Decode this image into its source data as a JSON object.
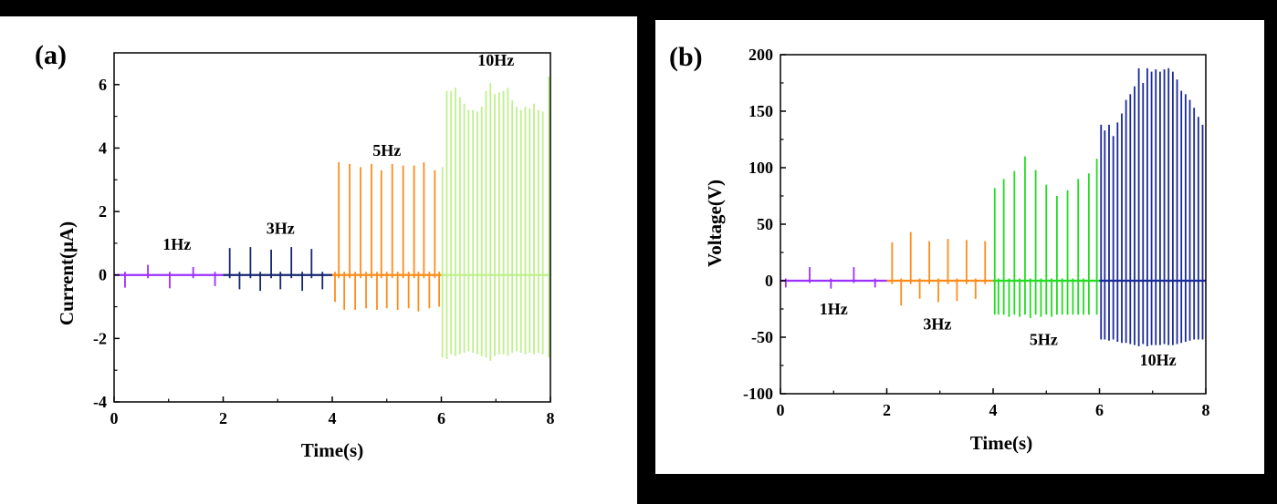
{
  "chart_data": [
    {
      "type": "line",
      "panel_label": "(a)",
      "title": "",
      "xlabel": "Time(s)",
      "ylabel": "Current(μA)",
      "xlim": [
        0,
        8
      ],
      "ylim": [
        -4,
        7
      ],
      "xticks": [
        "0",
        "2",
        "4",
        "6",
        "8"
      ],
      "yticks": [
        "-4",
        "-2",
        "0",
        "2",
        "4",
        "6"
      ],
      "grid": false,
      "series": [
        {
          "name": "1Hz",
          "color": "#9b30ff",
          "t_start": 0.0,
          "t_end": 2.0,
          "pulses": [
            {
              "t": 0.2,
              "pos": 0.1,
              "neg": -0.4
            },
            {
              "t": 0.62,
              "pos": 0.32,
              "neg": -0.1
            },
            {
              "t": 1.02,
              "pos": 0.1,
              "neg": -0.42
            },
            {
              "t": 1.45,
              "pos": 0.25,
              "neg": -0.1
            },
            {
              "t": 1.85,
              "pos": 0.1,
              "neg": -0.35
            }
          ]
        },
        {
          "name": "3Hz",
          "color": "#152670",
          "t_start": 2.0,
          "t_end": 4.0,
          "pulses": [
            {
              "t": 2.12,
              "pos": 0.85,
              "neg": -0.1
            },
            {
              "t": 2.3,
              "pos": 0.1,
              "neg": -0.45
            },
            {
              "t": 2.5,
              "pos": 0.88,
              "neg": -0.1
            },
            {
              "t": 2.68,
              "pos": 0.1,
              "neg": -0.5
            },
            {
              "t": 2.88,
              "pos": 0.8,
              "neg": -0.1
            },
            {
              "t": 3.05,
              "pos": 0.1,
              "neg": -0.45
            },
            {
              "t": 3.25,
              "pos": 0.88,
              "neg": -0.1
            },
            {
              "t": 3.45,
              "pos": 0.1,
              "neg": -0.5
            },
            {
              "t": 3.62,
              "pos": 0.82,
              "neg": -0.1
            },
            {
              "t": 3.82,
              "pos": 0.1,
              "neg": -0.45
            }
          ]
        },
        {
          "name": "5Hz",
          "color": "#ff8c1a",
          "t_start": 4.0,
          "t_end": 6.0,
          "pulses": [
            {
              "t": 4.05,
              "pos": 0.1,
              "neg": -0.85
            },
            {
              "t": 4.12,
              "pos": 3.55,
              "neg": -0.1
            },
            {
              "t": 4.22,
              "pos": 0.1,
              "neg": -1.1
            },
            {
              "t": 4.32,
              "pos": 3.5,
              "neg": -0.1
            },
            {
              "t": 4.42,
              "pos": 0.1,
              "neg": -1.1
            },
            {
              "t": 4.52,
              "pos": 3.4,
              "neg": -0.1
            },
            {
              "t": 4.62,
              "pos": 0.1,
              "neg": -1.05
            },
            {
              "t": 4.72,
              "pos": 3.5,
              "neg": -0.1
            },
            {
              "t": 4.82,
              "pos": 0.1,
              "neg": -1.1
            },
            {
              "t": 4.9,
              "pos": 3.3,
              "neg": -0.1
            },
            {
              "t": 5.0,
              "pos": 0.1,
              "neg": -1.05
            },
            {
              "t": 5.1,
              "pos": 3.5,
              "neg": -0.1
            },
            {
              "t": 5.2,
              "pos": 0.1,
              "neg": -1.1
            },
            {
              "t": 5.3,
              "pos": 3.45,
              "neg": -0.1
            },
            {
              "t": 5.4,
              "pos": 0.1,
              "neg": -1.05
            },
            {
              "t": 5.5,
              "pos": 3.45,
              "neg": -0.1
            },
            {
              "t": 5.58,
              "pos": 0.1,
              "neg": -1.15
            },
            {
              "t": 5.68,
              "pos": 3.55,
              "neg": -0.1
            },
            {
              "t": 5.78,
              "pos": 0.1,
              "neg": -1.05
            },
            {
              "t": 5.88,
              "pos": 3.3,
              "neg": -0.1
            },
            {
              "t": 5.96,
              "pos": 0.1,
              "neg": -1.0
            }
          ]
        },
        {
          "name": "10Hz",
          "color": "#bff08c",
          "t_start": 6.0,
          "t_end": 8.0,
          "pulses": [
            {
              "t": 6.02,
              "pos": 3.4,
              "neg": -2.6
            },
            {
              "t": 6.1,
              "pos": 5.8,
              "neg": -2.65
            },
            {
              "t": 6.18,
              "pos": 5.8,
              "neg": -2.5
            },
            {
              "t": 6.26,
              "pos": 5.9,
              "neg": -2.55
            },
            {
              "t": 6.34,
              "pos": 5.6,
              "neg": -2.5
            },
            {
              "t": 6.42,
              "pos": 5.4,
              "neg": -2.45
            },
            {
              "t": 6.5,
              "pos": 5.2,
              "neg": -2.4
            },
            {
              "t": 6.58,
              "pos": 5.2,
              "neg": -2.45
            },
            {
              "t": 6.66,
              "pos": 5.15,
              "neg": -2.5
            },
            {
              "t": 6.74,
              "pos": 5.3,
              "neg": -2.55
            },
            {
              "t": 6.82,
              "pos": 5.8,
              "neg": -2.6
            },
            {
              "t": 6.9,
              "pos": 6.05,
              "neg": -2.7
            },
            {
              "t": 6.98,
              "pos": 5.7,
              "neg": -2.55
            },
            {
              "t": 7.06,
              "pos": 5.75,
              "neg": -2.5
            },
            {
              "t": 7.14,
              "pos": 5.8,
              "neg": -2.5
            },
            {
              "t": 7.22,
              "pos": 5.9,
              "neg": -2.55
            },
            {
              "t": 7.3,
              "pos": 5.5,
              "neg": -2.45
            },
            {
              "t": 7.38,
              "pos": 5.3,
              "neg": -2.4
            },
            {
              "t": 7.46,
              "pos": 5.2,
              "neg": -2.45
            },
            {
              "t": 7.54,
              "pos": 5.3,
              "neg": -2.5
            },
            {
              "t": 7.62,
              "pos": 5.25,
              "neg": -2.45
            },
            {
              "t": 7.7,
              "pos": 5.4,
              "neg": -2.5
            },
            {
              "t": 7.78,
              "pos": 5.2,
              "neg": -2.45
            },
            {
              "t": 7.86,
              "pos": 5.15,
              "neg": -2.5
            },
            {
              "t": 7.97,
              "pos": 6.25,
              "neg": -2.6
            }
          ]
        }
      ],
      "annotations": [
        {
          "text": "1Hz",
          "t": 1.15,
          "v": 0.8
        },
        {
          "text": "3Hz",
          "t": 3.05,
          "v": 1.3
        },
        {
          "text": "5Hz",
          "t": 5.0,
          "v": 3.75
        },
        {
          "text": "10Hz",
          "t": 7.0,
          "v": 6.6
        }
      ]
    },
    {
      "type": "line",
      "panel_label": "(b)",
      "title": "",
      "xlabel": "Time(s)",
      "ylabel": "Voltage(V)",
      "xlim": [
        0,
        8
      ],
      "ylim": [
        -100,
        200
      ],
      "xticks": [
        "0",
        "2",
        "4",
        "6",
        "8"
      ],
      "yticks": [
        "-100",
        "-50",
        "0",
        "50",
        "100",
        "150",
        "200"
      ],
      "grid": false,
      "series": [
        {
          "name": "1Hz",
          "color": "#9b30ff",
          "t_start": 0.0,
          "t_end": 2.0,
          "pulses": [
            {
              "t": 0.1,
              "pos": 2,
              "neg": -6
            },
            {
              "t": 0.55,
              "pos": 12,
              "neg": -2
            },
            {
              "t": 0.95,
              "pos": 2,
              "neg": -7
            },
            {
              "t": 1.38,
              "pos": 12,
              "neg": -2
            },
            {
              "t": 1.78,
              "pos": 2,
              "neg": -6
            }
          ]
        },
        {
          "name": "3Hz",
          "color": "#ff8c1a",
          "t_start": 2.0,
          "t_end": 4.0,
          "pulses": [
            {
              "t": 2.1,
              "pos": 34,
              "neg": -3
            },
            {
              "t": 2.27,
              "pos": 2,
              "neg": -22
            },
            {
              "t": 2.45,
              "pos": 43,
              "neg": -3
            },
            {
              "t": 2.62,
              "pos": 2,
              "neg": -16
            },
            {
              "t": 2.8,
              "pos": 35,
              "neg": -3
            },
            {
              "t": 2.97,
              "pos": 2,
              "neg": -19
            },
            {
              "t": 3.15,
              "pos": 37,
              "neg": -3
            },
            {
              "t": 3.32,
              "pos": 2,
              "neg": -18
            },
            {
              "t": 3.5,
              "pos": 36,
              "neg": -3
            },
            {
              "t": 3.67,
              "pos": 2,
              "neg": -16
            },
            {
              "t": 3.85,
              "pos": 35,
              "neg": -3
            }
          ]
        },
        {
          "name": "5Hz",
          "color": "#22dd22",
          "t_start": 4.0,
          "t_end": 6.0,
          "pulses": [
            {
              "t": 4.03,
              "pos": 82,
              "neg": -30
            },
            {
              "t": 4.1,
              "pos": 2,
              "neg": -30
            },
            {
              "t": 4.2,
              "pos": 90,
              "neg": -30
            },
            {
              "t": 4.3,
              "pos": 2,
              "neg": -32
            },
            {
              "t": 4.4,
              "pos": 97,
              "neg": -30
            },
            {
              "t": 4.5,
              "pos": 2,
              "neg": -32
            },
            {
              "t": 4.6,
              "pos": 110,
              "neg": -30
            },
            {
              "t": 4.7,
              "pos": 2,
              "neg": -33
            },
            {
              "t": 4.8,
              "pos": 98,
              "neg": -30
            },
            {
              "t": 4.9,
              "pos": 2,
              "neg": -32
            },
            {
              "t": 5.0,
              "pos": 85,
              "neg": -30
            },
            {
              "t": 5.1,
              "pos": 2,
              "neg": -32
            },
            {
              "t": 5.2,
              "pos": 75,
              "neg": -30
            },
            {
              "t": 5.3,
              "pos": 2,
              "neg": -30
            },
            {
              "t": 5.4,
              "pos": 80,
              "neg": -30
            },
            {
              "t": 5.5,
              "pos": 2,
              "neg": -30
            },
            {
              "t": 5.6,
              "pos": 90,
              "neg": -30
            },
            {
              "t": 5.7,
              "pos": 2,
              "neg": -30
            },
            {
              "t": 5.8,
              "pos": 95,
              "neg": -30
            },
            {
              "t": 5.95,
              "pos": 108,
              "neg": -30
            }
          ]
        },
        {
          "name": "10Hz",
          "color": "#1a2a99",
          "t_start": 6.0,
          "t_end": 8.0,
          "pulses": [
            {
              "t": 6.03,
              "pos": 138,
              "neg": -52
            },
            {
              "t": 6.1,
              "pos": 133,
              "neg": -52
            },
            {
              "t": 6.18,
              "pos": 138,
              "neg": -53
            },
            {
              "t": 6.26,
              "pos": 128,
              "neg": -52
            },
            {
              "t": 6.34,
              "pos": 140,
              "neg": -54
            },
            {
              "t": 6.42,
              "pos": 148,
              "neg": -55
            },
            {
              "t": 6.5,
              "pos": 160,
              "neg": -55
            },
            {
              "t": 6.58,
              "pos": 165,
              "neg": -56
            },
            {
              "t": 6.66,
              "pos": 172,
              "neg": -57
            },
            {
              "t": 6.74,
              "pos": 188,
              "neg": -58
            },
            {
              "t": 6.82,
              "pos": 175,
              "neg": -56
            },
            {
              "t": 6.9,
              "pos": 188,
              "neg": -58
            },
            {
              "t": 6.98,
              "pos": 185,
              "neg": -57
            },
            {
              "t": 7.06,
              "pos": 187,
              "neg": -57
            },
            {
              "t": 7.14,
              "pos": 185,
              "neg": -57
            },
            {
              "t": 7.22,
              "pos": 187,
              "neg": -56
            },
            {
              "t": 7.3,
              "pos": 188,
              "neg": -57
            },
            {
              "t": 7.38,
              "pos": 185,
              "neg": -57
            },
            {
              "t": 7.46,
              "pos": 178,
              "neg": -56
            },
            {
              "t": 7.54,
              "pos": 168,
              "neg": -55
            },
            {
              "t": 7.62,
              "pos": 165,
              "neg": -54
            },
            {
              "t": 7.7,
              "pos": 160,
              "neg": -53
            },
            {
              "t": 7.78,
              "pos": 153,
              "neg": -52
            },
            {
              "t": 7.86,
              "pos": 145,
              "neg": -52
            },
            {
              "t": 7.94,
              "pos": 138,
              "neg": -52
            }
          ]
        }
      ],
      "annotations": [
        {
          "text": "1Hz",
          "t": 1.0,
          "v": -30
        },
        {
          "text": "3Hz",
          "t": 2.95,
          "v": -43
        },
        {
          "text": "5Hz",
          "t": 4.95,
          "v": -57
        },
        {
          "text": "10Hz",
          "t": 7.1,
          "v": -75
        }
      ]
    }
  ]
}
